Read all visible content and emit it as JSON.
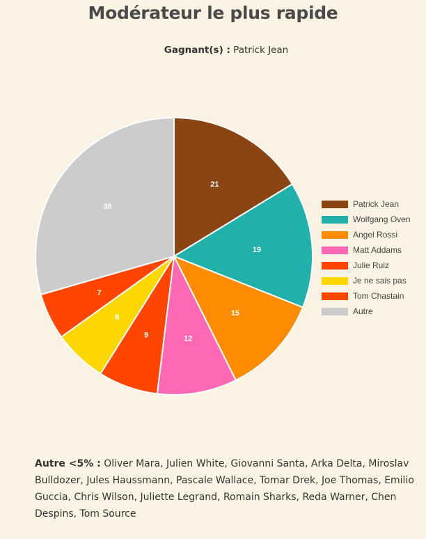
{
  "title": "Modérateur le plus rapide",
  "winner": {
    "label": "Gagnant(s) :",
    "value": "Patrick Jean"
  },
  "chart_data": {
    "type": "pie",
    "title": "",
    "labels": [
      "Patrick Jean",
      "Wolfgang Oven",
      "Angel Rossi",
      "Matt Addams",
      "Julie Ruiz",
      "Je ne sais pas",
      "Tom Chastain",
      "Autre"
    ],
    "values": [
      21,
      19,
      15,
      12,
      9,
      8,
      7,
      38
    ],
    "colors": [
      "#8b4513",
      "#20b2aa",
      "#ff8c00",
      "#ff69b4",
      "#ff4500",
      "#ffd700",
      "#ff4500",
      "#cccccc"
    ],
    "legend": "right",
    "start_angle": "top",
    "direction": "clockwise"
  },
  "footer": {
    "label": "Autre <5% :",
    "text": "Oliver Mara, Julien White, Giovanni Santa, Arka Delta, Miroslav Bulldozer, Jules Haussmann, Pascale Wallace, Tomar Drek, Joe Thomas, Emilio Guccia, Chris Wilson, Juliette Legrand, Romain Sharks, Reda Warner, Chen Despins, Tom Source"
  }
}
